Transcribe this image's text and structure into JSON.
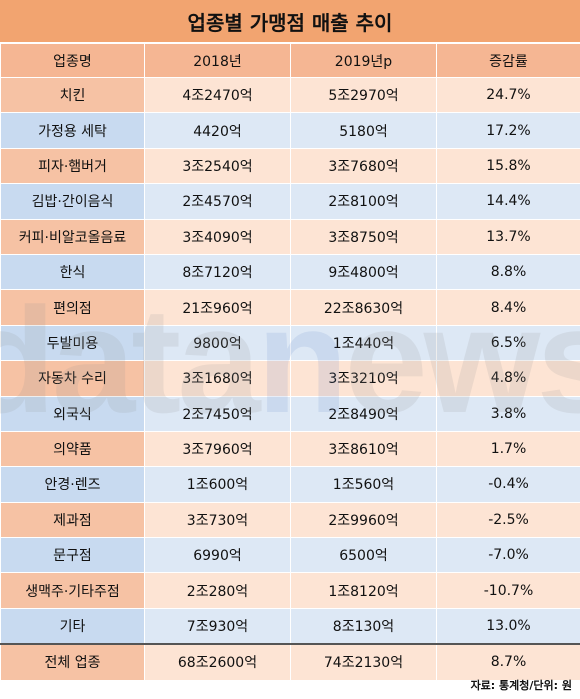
{
  "title": "업종별 가맹점 매출 추이",
  "columns": [
    "업종명",
    "2018년",
    "2019년p",
    "증감률"
  ],
  "rows": [
    [
      "치킨",
      "4조2470억",
      "5조2970억",
      "24.7%"
    ],
    [
      "가정용 세탁",
      "4420억",
      "5180억",
      "17.2%"
    ],
    [
      "피자·햄버거",
      "3조2540억",
      "3조7680억",
      "15.8%"
    ],
    [
      "김밥·간이음식",
      "2조4570억",
      "2조8100억",
      "14.4%"
    ],
    [
      "커피·비알코올음료",
      "3조4090억",
      "3조8750억",
      "13.7%"
    ],
    [
      "한식",
      "8조7120억",
      "9조4800억",
      "8.8%"
    ],
    [
      "편의점",
      "21조960억",
      "22조8630억",
      "8.4%"
    ],
    [
      "두발미용",
      "9800억",
      "1조440억",
      "6.5%"
    ],
    [
      "자동차 수리",
      "3조1680억",
      "3조3210억",
      "4.8%"
    ],
    [
      "외국식",
      "2조7450억",
      "2조8490억",
      "3.8%"
    ],
    [
      "의약품",
      "3조7960억",
      "3조8610억",
      "1.7%"
    ],
    [
      "안경·렌즈",
      "1조600억",
      "1조560억",
      "-0.4%"
    ],
    [
      "제과점",
      "3조730억",
      "2조9960억",
      "-2.5%"
    ],
    [
      "문구점",
      "6990억",
      "6500억",
      "-7.0%"
    ],
    [
      "생맥주·기타주점",
      "2조280억",
      "1조8120억",
      "-10.7%"
    ],
    [
      "기타",
      "7조930억",
      "8조130억",
      "13.0%"
    ]
  ],
  "total": [
    "전체 업종",
    "68조2600억",
    "74조2130억",
    "8.7%"
  ],
  "source": "자료: 통계청/단위: 원",
  "watermark": {
    "prefix": "data",
    "accent": "n",
    "suffix": "ews"
  },
  "colors": {
    "title_bg": "#f2a470",
    "header_bg": "#f5b693",
    "row_orange": "#fde4d4",
    "row_blue": "#dde8f5"
  }
}
